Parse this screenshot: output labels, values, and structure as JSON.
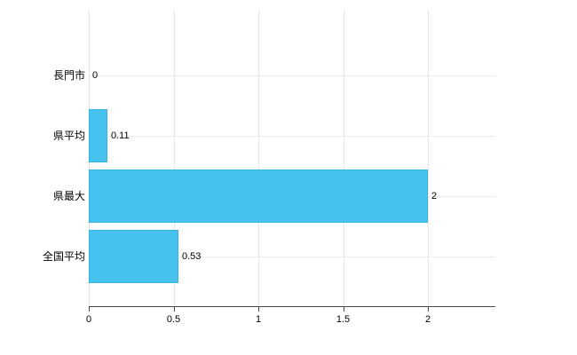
{
  "chart_data": {
    "type": "bar",
    "orientation": "horizontal",
    "title": "",
    "xlabel": "",
    "ylabel": "",
    "categories": [
      "長門市",
      "県平均",
      "県最大",
      "全国平均"
    ],
    "values": [
      0,
      0.11,
      2,
      0.53
    ],
    "value_labels": [
      "0",
      "0.11",
      "2",
      "0.53"
    ],
    "xlim": [
      0,
      2.4
    ],
    "xticks": [
      0,
      0.5,
      1,
      1.5,
      2
    ],
    "xtick_labels": [
      "0",
      "0.5",
      "1",
      "1.5",
      "2"
    ],
    "grid": true,
    "legend": false,
    "colors": {
      "bar_fill": "#47c2ef",
      "bar_border": "#38b4e3",
      "gridline": "#e5e5e5",
      "axis": "#4a4a4a",
      "text": "#000000",
      "background": "#ffffff"
    }
  }
}
